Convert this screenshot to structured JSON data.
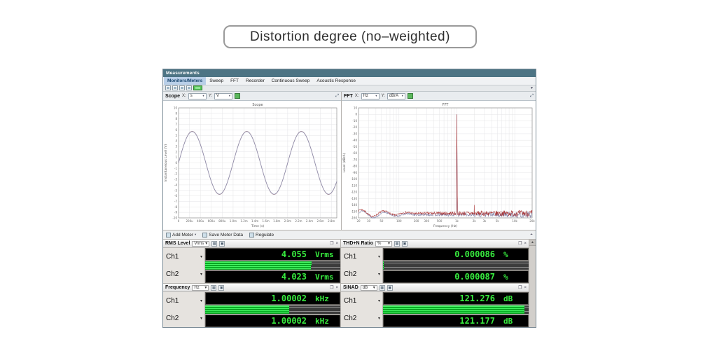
{
  "page_title": "Distortion degree (no–weighted)",
  "window": {
    "title": "Measurements",
    "tabs": [
      "Monitors/Meters",
      "Sweep",
      "FFT",
      "Recorder",
      "Continuous Sweep",
      "Acoustic Response"
    ],
    "active_tab": "Monitors/Meters",
    "toolbar_icons": [
      "new-icon",
      "open-icon",
      "save-icon",
      "layout-icon",
      "generator-on-toggle"
    ],
    "graph_panels": {
      "scope": {
        "name": "Scope",
        "x_label_prefix": "X:",
        "x_unit": "s",
        "y_label_prefix": "Y:",
        "y_unit": "V"
      },
      "fft": {
        "name": "FFT",
        "x_label_prefix": "X:",
        "x_unit": "Hz",
        "y_label_prefix": "Y:",
        "y_unit": "dBrA"
      }
    },
    "meter_toolbar": {
      "add_meter": "Add Meter",
      "save_meter_data": "Save Meter Data",
      "regulate": "Regulate"
    },
    "meters": [
      {
        "name": "RMS Level",
        "unit_selector": "Vrms",
        "channels": [
          {
            "label": "Ch1",
            "value": "4.055",
            "unit": "Vrms",
            "bar_pct": 79
          },
          {
            "label": "Ch2",
            "value": "4.023",
            "unit": "Vrms",
            "bar_pct": 78
          }
        ]
      },
      {
        "name": "THD+N Ratio",
        "unit_selector": "%",
        "channels": [
          {
            "label": "Ch1",
            "value": "0.000086",
            "unit": "%",
            "bar_pct": 0.5
          },
          {
            "label": "Ch2",
            "value": "0.000087",
            "unit": "%",
            "bar_pct": 0.5
          }
        ]
      },
      {
        "name": "Frequency",
        "unit_selector": "Hz",
        "channels": [
          {
            "label": "Ch1",
            "value": "1.00002",
            "unit": "kHz",
            "bar_pct": 62
          },
          {
            "label": "Ch2",
            "value": "1.00002",
            "unit": "kHz",
            "bar_pct": 62
          }
        ]
      },
      {
        "name": "SINAD",
        "unit_selector": "dB",
        "channels": [
          {
            "label": "Ch1",
            "value": "121.276",
            "unit": "dB",
            "bar_pct": 97
          },
          {
            "label": "Ch2",
            "value": "121.177",
            "unit": "dB",
            "bar_pct": 97
          }
        ]
      }
    ]
  },
  "chart_data": [
    {
      "type": "line",
      "id": "scope",
      "title": "Scope",
      "xlabel": "Time (s)",
      "ylabel": "Instantaneous Level (V)",
      "xlim": [
        0,
        0.0029
      ],
      "ylim": [
        -10,
        10
      ],
      "y_tick_step": 1,
      "grid": true,
      "x_ticks": [
        {
          "v": 0,
          "label": "0"
        },
        {
          "v": 0.0002,
          "label": "200u"
        },
        {
          "v": 0.0004,
          "label": "400u"
        },
        {
          "v": 0.0006,
          "label": "600u"
        },
        {
          "v": 0.0008,
          "label": "800u"
        },
        {
          "v": 0.001,
          "label": "1.0m"
        },
        {
          "v": 0.0012,
          "label": "1.2m"
        },
        {
          "v": 0.0014,
          "label": "1.4m"
        },
        {
          "v": 0.0016,
          "label": "1.6m"
        },
        {
          "v": 0.0018,
          "label": "1.8m"
        },
        {
          "v": 0.002,
          "label": "2.0m"
        },
        {
          "v": 0.0022,
          "label": "2.2m"
        },
        {
          "v": 0.0024,
          "label": "2.4m"
        },
        {
          "v": 0.0026,
          "label": "2.6m"
        },
        {
          "v": 0.0028,
          "label": "2.8m"
        }
      ],
      "series": [
        {
          "name": "Ch1",
          "color": "#b08f8f",
          "waveform": "sine",
          "amplitude_v": 5.74,
          "frequency_hz": 1000,
          "phase_deg": 0
        },
        {
          "name": "Ch2",
          "color": "#9090b0",
          "waveform": "sine",
          "amplitude_v": 5.69,
          "frequency_hz": 1000,
          "phase_deg": 0
        }
      ]
    },
    {
      "type": "line",
      "id": "fft",
      "title": "FFT",
      "xlabel": "Frequency (Hz)",
      "ylabel": "Level (dBrA)",
      "x_scale": "log",
      "xlim": [
        20,
        20000
      ],
      "ylim": [
        -160,
        10
      ],
      "y_tick_step": 10,
      "grid": true,
      "x_ticks": [
        {
          "v": 20,
          "label": "20"
        },
        {
          "v": 30,
          "label": "30"
        },
        {
          "v": 50,
          "label": "50"
        },
        {
          "v": 100,
          "label": "100"
        },
        {
          "v": 200,
          "label": "200"
        },
        {
          "v": 300,
          "label": "300"
        },
        {
          "v": 500,
          "label": "500"
        },
        {
          "v": 1000,
          "label": "1k"
        },
        {
          "v": 2000,
          "label": "2k"
        },
        {
          "v": 3000,
          "label": "3k"
        },
        {
          "v": 5000,
          "label": "5k"
        },
        {
          "v": 10000,
          "label": "10k"
        },
        {
          "v": 20000,
          "label": "20k"
        }
      ],
      "series": [
        {
          "name": "Ch2",
          "color": "#8585aa",
          "peak_hz": 1000,
          "peak_db": 0,
          "noise_floor_db": -153,
          "seed": 13
        },
        {
          "name": "Ch1",
          "color": "#a93333",
          "peak_hz": 1000,
          "peak_db": 0,
          "noise_floor_db": -151,
          "spur_hz": 2000,
          "spur_db": -140,
          "seed": 7
        }
      ]
    }
  ]
}
